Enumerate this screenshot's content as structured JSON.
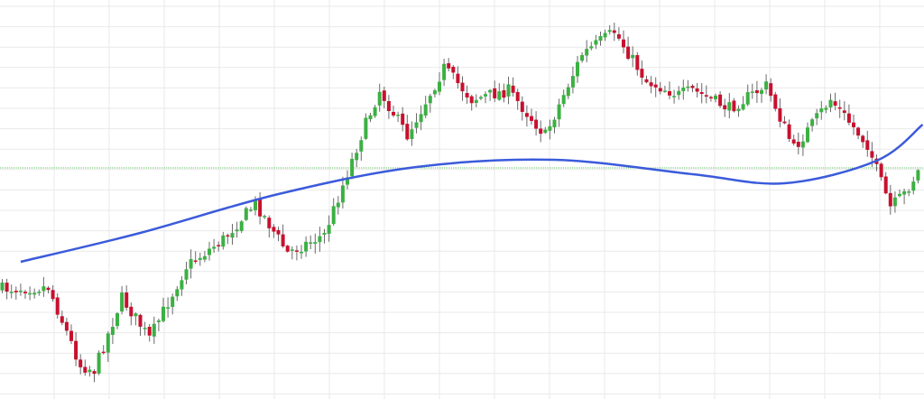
{
  "chart_data": {
    "type": "candlestick",
    "title": "",
    "xlabel": "",
    "ylabel": "",
    "grid": true,
    "legend": "none",
    "x_count": 200,
    "ylim": [
      0,
      442
    ],
    "colors": {
      "up": "#3cb043",
      "down": "#c8102e",
      "trend_line": "#3b5bdb",
      "reference_line": "#5cbf5c",
      "grid": "#e9e9e9",
      "background": "#ffffff"
    },
    "reference_level": 186,
    "trend_line": {
      "name": "",
      "x": [
        4,
        30,
        60,
        90,
        120,
        150,
        170,
        190,
        200
      ],
      "y": [
        290,
        258,
        215,
        185,
        177,
        193,
        203,
        178,
        138
      ]
    },
    "price_path": {
      "x": [
        0,
        10,
        17,
        20,
        26,
        32,
        40,
        48,
        55,
        62,
        70,
        78,
        82,
        88,
        96,
        102,
        110,
        118,
        126,
        133,
        140,
        147,
        150,
        158,
        166,
        172,
        180,
        188,
        193,
        196,
        199
      ],
      "y": [
        320,
        318,
        405,
        410,
        330,
        375,
        295,
        265,
        225,
        280,
        260,
        150,
        100,
        150,
        75,
        110,
        100,
        150,
        60,
        35,
        90,
        105,
        100,
        120,
        95,
        165,
        110,
        160,
        230,
        215,
        190
      ]
    }
  }
}
